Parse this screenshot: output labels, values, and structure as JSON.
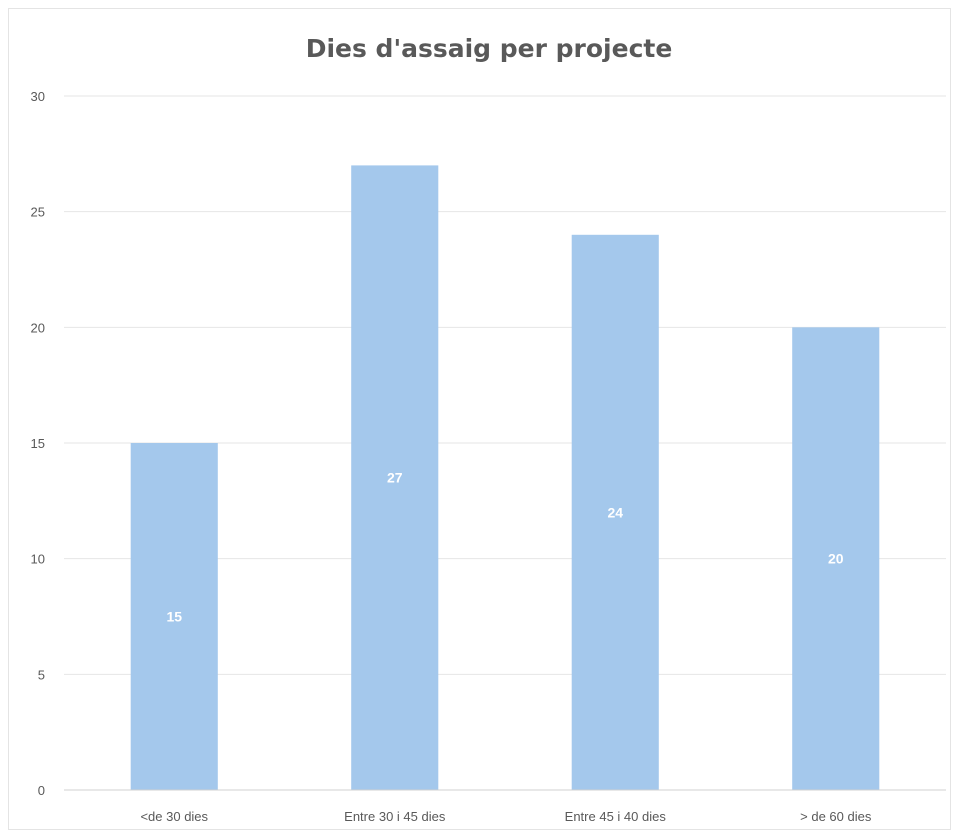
{
  "chart_data": {
    "type": "bar",
    "title": "Dies d'assaig per projecte",
    "xlabel": "",
    "ylabel": "",
    "categories": [
      "<de 30 dies",
      "Entre 30 i 45 dies",
      "Entre 45 i 40 dies",
      "> de 60 dies"
    ],
    "values": [
      15,
      27,
      24,
      20
    ],
    "data_labels": [
      "15",
      "27",
      "24",
      "20"
    ],
    "ylim": [
      0,
      30
    ],
    "yticks": [
      0,
      5,
      10,
      15,
      20,
      25,
      30
    ],
    "grid": true,
    "legend": "none",
    "bar_color": "#a4c8ec"
  }
}
